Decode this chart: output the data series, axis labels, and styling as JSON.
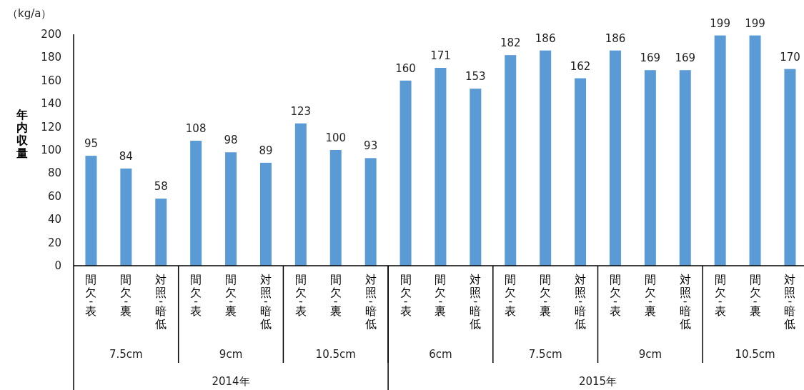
{
  "chart_data": {
    "type": "bar",
    "ylabel": "年内収量",
    "categories": [
      "間欠-表",
      "間欠-裏",
      "対照-暗低",
      "間欠-表",
      "間欠-裏",
      "対照-暗低",
      "間欠-表",
      "間欠-裏",
      "対照-暗低",
      "間欠-表",
      "間欠-裏",
      "対照-暗低",
      "間欠-表",
      "間欠-裏",
      "対照-暗低",
      "間欠-表",
      "間欠-裏",
      "対照-暗低",
      "間欠-表",
      "間欠-裏",
      "対照-暗低"
    ],
    "values": [
      95,
      84,
      58,
      108,
      98,
      89,
      123,
      100,
      93,
      160,
      171,
      153,
      182,
      186,
      162,
      186,
      169,
      169,
      199,
      199,
      170
    ],
    "color": "#5b9bd5",
    "ylim": [
      0,
      200
    ],
    "yticks": [
      0,
      20,
      40,
      60,
      80,
      100,
      120,
      140,
      160,
      180,
      200
    ],
    "data_labels": true,
    "grid": false,
    "annotations": [
      "（kg/a）",
      "7.5cm",
      "9cm",
      "10.5cm",
      "6cm",
      "7.5cm",
      "9cm",
      "10.5cm",
      "2014年",
      "2015年"
    ]
  }
}
